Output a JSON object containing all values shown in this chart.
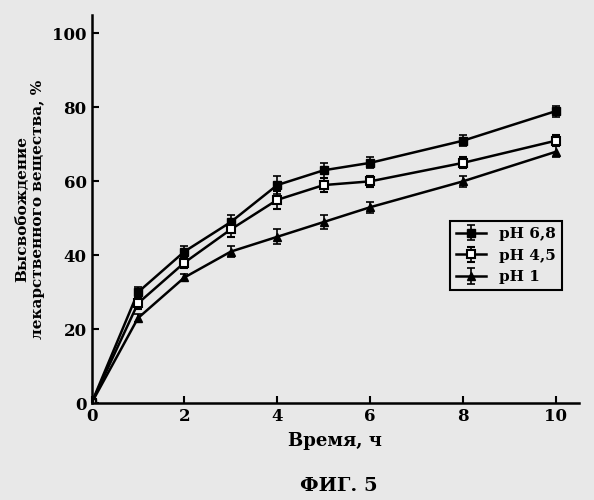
{
  "x": [
    0,
    1,
    2,
    3,
    4,
    5,
    6,
    8,
    10
  ],
  "pH68_y": [
    0,
    30,
    41,
    49,
    59,
    63,
    65,
    71,
    79
  ],
  "pH45_y": [
    0,
    27,
    38,
    47,
    55,
    59,
    60,
    65,
    71
  ],
  "pH1_y": [
    0,
    23,
    34,
    41,
    45,
    49,
    53,
    60,
    68
  ],
  "pH68_err": [
    0,
    1.5,
    1.5,
    2.0,
    2.5,
    2.0,
    1.5,
    1.5,
    1.5
  ],
  "pH45_err": [
    0,
    1.5,
    1.5,
    2.0,
    2.5,
    2.0,
    1.5,
    1.5,
    1.5
  ],
  "pH1_err": [
    0,
    1.0,
    1.0,
    1.5,
    2.0,
    2.0,
    1.5,
    1.5,
    1.5
  ],
  "xlabel": "Время, ч",
  "ylabel": "Высвобождение\nлекарственного вещества, %",
  "fig_label": "ФИГ. 5",
  "legend": [
    "pH 6,8",
    "pH 4,5",
    "pH 1"
  ],
  "xlim": [
    0,
    10.5
  ],
  "ylim": [
    0,
    105
  ],
  "xticks": [
    0,
    2,
    4,
    6,
    8,
    10
  ],
  "yticks": [
    0,
    20,
    40,
    60,
    80,
    100
  ],
  "color_filled": "#000000",
  "color_open": "#ffffff",
  "linecolor": "#000000",
  "background": "#e8e8e8"
}
